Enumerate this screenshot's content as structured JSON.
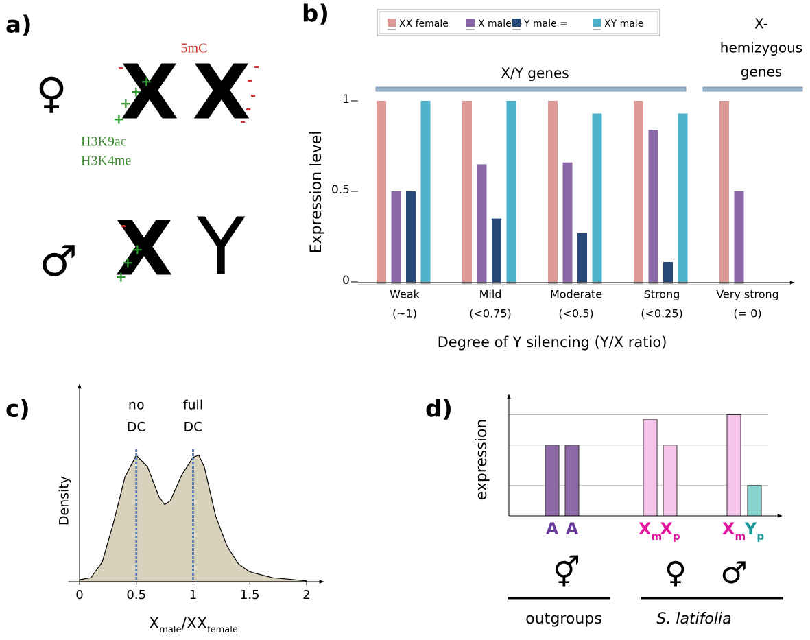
{
  "panel_labels": [
    "a)",
    "b)",
    "c)",
    "d)"
  ],
  "diagram": {
    "female_symbol": "♀",
    "male_symbol": "♂",
    "female_chromosomes": [
      "X",
      "X"
    ],
    "male_chromosomes": [
      "X",
      "Y"
    ],
    "dna_mark": "5mC",
    "histone_marks": [
      "H3K9ac",
      "H3K4me"
    ]
  },
  "chart_data": [
    {
      "type": "bar",
      "categories": [
        "Weak",
        "Mild",
        "Moderate",
        "Strong",
        "Very strong"
      ],
      "category_sublabels": [
        "(~1)",
        "(<0.75)",
        "(<0.5)",
        "(<0.25)",
        "(= 0)"
      ],
      "series": [
        {
          "name": "XX female",
          "color": "#dd9a96",
          "values": [
            1,
            1,
            1,
            1,
            1
          ]
        },
        {
          "name": "X male +",
          "color": "#8a68a8",
          "values": [
            0.5,
            0.65,
            0.66,
            0.84,
            0.5
          ]
        },
        {
          "name": "Y male =",
          "color": "#254a7a",
          "values": [
            0.5,
            0.35,
            0.27,
            0.11,
            null
          ]
        },
        {
          "name": "XY male",
          "color": "#4eb2cc",
          "values": [
            1,
            1,
            0.93,
            0.93,
            null
          ]
        }
      ],
      "gene_groups": [
        [
          "X/Y genes"
        ],
        [
          "X-",
          "hemizygous",
          "genes"
        ]
      ],
      "ylim": [
        0,
        1
      ],
      "yticks": [
        0,
        0.5,
        1
      ],
      "ylabel": "Expression level",
      "xlabel": "Degree of Y silencing (Y/X ratio)",
      "legend": "top"
    },
    {
      "type": "area",
      "x": [
        0,
        0.1,
        0.2,
        0.3,
        0.4,
        0.5,
        0.6,
        0.7,
        0.75,
        0.8,
        0.9,
        1.0,
        1.05,
        1.1,
        1.2,
        1.3,
        1.4,
        1.5,
        1.7,
        2
      ],
      "values": [
        0.01,
        0.02,
        0.1,
        0.3,
        0.53,
        0.64,
        0.58,
        0.43,
        0.39,
        0.41,
        0.54,
        0.63,
        0.64,
        0.58,
        0.33,
        0.18,
        0.09,
        0.05,
        0.02,
        0.004
      ],
      "color": "#d8d2bc",
      "xlim": [
        -0.1,
        2.15
      ],
      "xticks": [
        0,
        0.5,
        1,
        1.5,
        2
      ],
      "ylim": [
        0,
        1
      ],
      "annotations": [
        {
          "x": 0.5,
          "label": [
            "no",
            "DC"
          ]
        },
        {
          "x": 1,
          "label": [
            "full",
            "DC"
          ]
        }
      ],
      "ylabel": "Density",
      "xlabel": [
        "X",
        "male",
        "/XX",
        "female"
      ]
    },
    {
      "type": "bar",
      "categories": [
        "A",
        "A",
        "X",
        "X",
        "X",
        "Y"
      ],
      "category_subscripts": [
        null,
        null,
        "m",
        "p",
        "m",
        "p"
      ],
      "values": [
        0.7,
        0.7,
        0.95,
        0.7,
        1.0,
        0.3
      ],
      "colors": [
        "#8e6aa6",
        "#8e6aa6",
        "#f5c6ea",
        "#f5c6ea",
        "#f5c6ea",
        "#86d2cc"
      ],
      "label_colors": [
        "#6a3d9a",
        "#6a3d9a",
        "#e0189e",
        "#e0189e",
        "#e0189e",
        "#1a9a9a"
      ],
      "ylim": [
        0,
        1.2
      ],
      "grid_lines": [
        0.3,
        0.7,
        1.0
      ],
      "ylabel": "expression",
      "sex_symbols": [
        "⚥",
        "♀",
        "♂"
      ],
      "taxa": [
        "outgroups",
        "S. latifolia"
      ]
    }
  ]
}
